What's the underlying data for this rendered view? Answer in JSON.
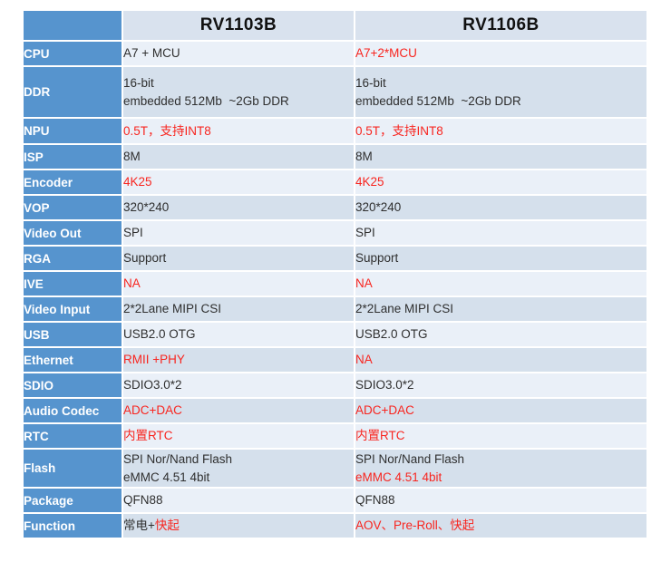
{
  "page": {
    "background": "#ffffff"
  },
  "colors": {
    "label_blue": "#5694ce",
    "header_bg": "#d9e2ee",
    "row_light": "#eaf0f8",
    "row_dark": "#d5e0ec",
    "text_dark": "#2f2f2f",
    "text_red": "#f8251f",
    "label_text": "#ffffff",
    "border": "#ffffff"
  },
  "table": {
    "header": {
      "corner": "",
      "col1": "RV1103B",
      "col2": "RV1106B"
    },
    "rows": [
      {
        "label": "CPU",
        "h": 28,
        "cells": [
          {
            "lines": [
              [
                {
                  "text": "A7 + MCU",
                  "red": false
                }
              ]
            ]
          },
          {
            "lines": [
              [
                {
                  "text": "A7+2*MCU",
                  "red": true
                }
              ]
            ]
          }
        ]
      },
      {
        "label": "DDR",
        "h": 57,
        "cells": [
          {
            "lines": [
              [
                {
                  "text": "16-bit",
                  "red": false
                }
              ],
              [
                {
                  "text": "embedded 512Mb  ~2Gb DDR",
                  "red": false
                }
              ]
            ]
          },
          {
            "lines": [
              [
                {
                  "text": "16-bit",
                  "red": false
                }
              ],
              [
                {
                  "text": "embedded 512Mb  ~2Gb DDR",
                  "red": false
                }
              ]
            ]
          }
        ]
      },
      {
        "label": "NPU",
        "h": 29,
        "cells": [
          {
            "lines": [
              [
                {
                  "text": "0.5T，支持INT8",
                  "red": true
                }
              ]
            ]
          },
          {
            "lines": [
              [
                {
                  "text": "0.5T，支持INT8",
                  "red": true
                }
              ]
            ]
          }
        ]
      },
      {
        "label": "ISP",
        "h": 28,
        "cells": [
          {
            "lines": [
              [
                {
                  "text": "8M",
                  "red": false
                }
              ]
            ]
          },
          {
            "lines": [
              [
                {
                  "text": "8M",
                  "red": false
                }
              ]
            ]
          }
        ]
      },
      {
        "label": "Encoder",
        "h": 28,
        "cells": [
          {
            "lines": [
              [
                {
                  "text": "4K25",
                  "red": true
                }
              ]
            ]
          },
          {
            "lines": [
              [
                {
                  "text": "4K25",
                  "red": true
                }
              ]
            ]
          }
        ]
      },
      {
        "label": "VOP",
        "h": 28,
        "cells": [
          {
            "lines": [
              [
                {
                  "text": "320*240",
                  "red": false
                }
              ]
            ]
          },
          {
            "lines": [
              [
                {
                  "text": "320*240",
                  "red": false
                }
              ]
            ]
          }
        ]
      },
      {
        "label": "Video Out",
        "h": 28,
        "cells": [
          {
            "lines": [
              [
                {
                  "text": "SPI",
                  "red": false
                }
              ]
            ]
          },
          {
            "lines": [
              [
                {
                  "text": "SPI",
                  "red": false
                }
              ]
            ]
          }
        ]
      },
      {
        "label": "RGA",
        "h": 28,
        "cells": [
          {
            "lines": [
              [
                {
                  "text": "Support",
                  "red": false
                }
              ]
            ]
          },
          {
            "lines": [
              [
                {
                  "text": "Support",
                  "red": false
                }
              ]
            ]
          }
        ]
      },
      {
        "label": "IVE",
        "h": 28,
        "cells": [
          {
            "lines": [
              [
                {
                  "text": "NA",
                  "red": true
                }
              ]
            ]
          },
          {
            "lines": [
              [
                {
                  "text": "NA",
                  "red": true
                }
              ]
            ]
          }
        ]
      },
      {
        "label": "Video Input",
        "h": 28,
        "cells": [
          {
            "lines": [
              [
                {
                  "text": "2*2Lane MIPI CSI",
                  "red": false
                }
              ]
            ]
          },
          {
            "lines": [
              [
                {
                  "text": "2*2Lane MIPI CSI",
                  "red": false
                }
              ]
            ]
          }
        ]
      },
      {
        "label": "USB",
        "h": 28,
        "cells": [
          {
            "lines": [
              [
                {
                  "text": "USB2.0 OTG",
                  "red": false
                }
              ]
            ]
          },
          {
            "lines": [
              [
                {
                  "text": "USB2.0 OTG",
                  "red": false
                }
              ]
            ]
          }
        ]
      },
      {
        "label": "Ethernet",
        "h": 28,
        "cells": [
          {
            "lines": [
              [
                {
                  "text": "RMII +PHY",
                  "red": true
                }
              ]
            ]
          },
          {
            "lines": [
              [
                {
                  "text": "NA",
                  "red": true
                }
              ]
            ]
          }
        ]
      },
      {
        "label": "SDIO",
        "h": 28,
        "cells": [
          {
            "lines": [
              [
                {
                  "text": "SDIO3.0*2",
                  "red": false
                }
              ]
            ]
          },
          {
            "lines": [
              [
                {
                  "text": "SDIO3.0*2",
                  "red": false
                }
              ]
            ]
          }
        ]
      },
      {
        "label": "Audio Codec",
        "h": 28,
        "cells": [
          {
            "lines": [
              [
                {
                  "text": "ADC+DAC",
                  "red": true
                }
              ]
            ]
          },
          {
            "lines": [
              [
                {
                  "text": "ADC+DAC",
                  "red": true
                }
              ]
            ]
          }
        ]
      },
      {
        "label": "RTC",
        "h": 28,
        "cells": [
          {
            "lines": [
              [
                {
                  "text": "内置RTC",
                  "red": true
                }
              ]
            ]
          },
          {
            "lines": [
              [
                {
                  "text": "内置RTC",
                  "red": true
                }
              ]
            ]
          }
        ]
      },
      {
        "label": "Flash",
        "h": 43,
        "cells": [
          {
            "lines": [
              [
                {
                  "text": "SPI Nor/Nand Flash",
                  "red": false
                }
              ],
              [
                {
                  "text": "eMMC 4.51 4bit",
                  "red": false
                }
              ]
            ]
          },
          {
            "lines": [
              [
                {
                  "text": "SPI Nor/Nand Flash",
                  "red": false
                }
              ],
              [
                {
                  "text": "eMMC 4.51 4bit",
                  "red": true
                }
              ]
            ]
          }
        ]
      },
      {
        "label": "Package",
        "h": 28,
        "cells": [
          {
            "lines": [
              [
                {
                  "text": "QFN88",
                  "red": false
                }
              ]
            ]
          },
          {
            "lines": [
              [
                {
                  "text": "QFN88",
                  "red": false
                }
              ]
            ]
          }
        ]
      },
      {
        "label": "Function",
        "h": 28,
        "cells": [
          {
            "lines": [
              [
                {
                  "text": "常电+",
                  "red": false
                },
                {
                  "text": "快起",
                  "red": true
                }
              ]
            ]
          },
          {
            "lines": [
              [
                {
                  "text": "AOV、Pre-Roll、快起",
                  "red": true
                }
              ]
            ]
          }
        ]
      }
    ]
  }
}
